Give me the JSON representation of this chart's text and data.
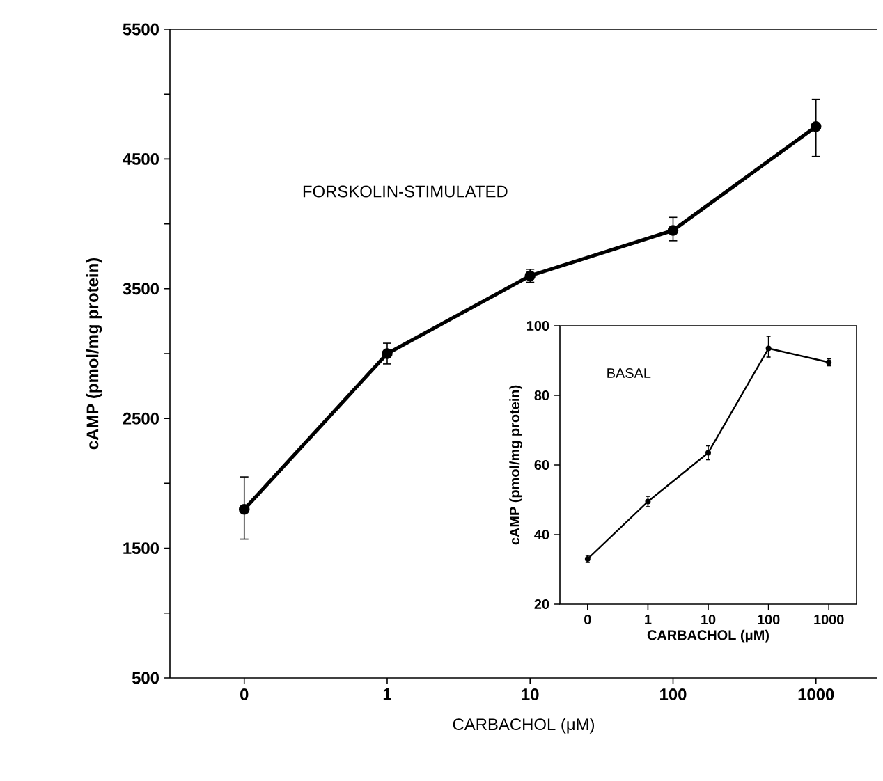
{
  "chart_data": [
    {
      "type": "line",
      "xlabel": "CARBACHOL (μM)",
      "ylabel": "cAMP (pmol/mg protein)",
      "annotations": [
        "FORSKOLIN-STIMULATED"
      ],
      "categories": [
        "0",
        "1",
        "10",
        "100",
        "1000"
      ],
      "series": [
        {
          "color": "#000000",
          "values": [
            1800,
            3000,
            3600,
            3950,
            4750
          ],
          "errors": [
            [
              1570,
              2050
            ],
            [
              2920,
              3080
            ],
            [
              3550,
              3650
            ],
            [
              3870,
              4050
            ],
            [
              4520,
              4960
            ]
          ]
        }
      ],
      "ylim": [
        500,
        5500
      ],
      "yticks": [
        500,
        {
          "value": 1000,
          "label": null
        },
        1500,
        {
          "value": 2000,
          "label": null
        },
        2500,
        {
          "value": 3000,
          "label": null
        },
        3500,
        {
          "value": 4000,
          "label": null
        },
        4500,
        {
          "value": 5000,
          "label": null
        },
        5500
      ],
      "marker": "circle",
      "line_style": "solid",
      "grid": false
    },
    {
      "type": "line",
      "xlabel": "CARBACHOL (μM)",
      "ylabel": "cAMP (pmol/mg protein)",
      "annotations": [
        "BASAL"
      ],
      "categories": [
        "0",
        "1",
        "10",
        "100",
        "1000"
      ],
      "series": [
        {
          "color": "#000000",
          "values": [
            33,
            49.5,
            63.5,
            93.5,
            89.5
          ],
          "errors": [
            [
              32,
              34
            ],
            [
              48,
              51
            ],
            [
              61.5,
              65.5
            ],
            [
              91,
              97
            ],
            [
              88.5,
              90.5
            ]
          ]
        }
      ],
      "ylim": [
        20,
        100
      ],
      "yticks": [
        20,
        40,
        60,
        80,
        100
      ],
      "marker": "circle",
      "line_style": "solid",
      "grid": false
    }
  ]
}
